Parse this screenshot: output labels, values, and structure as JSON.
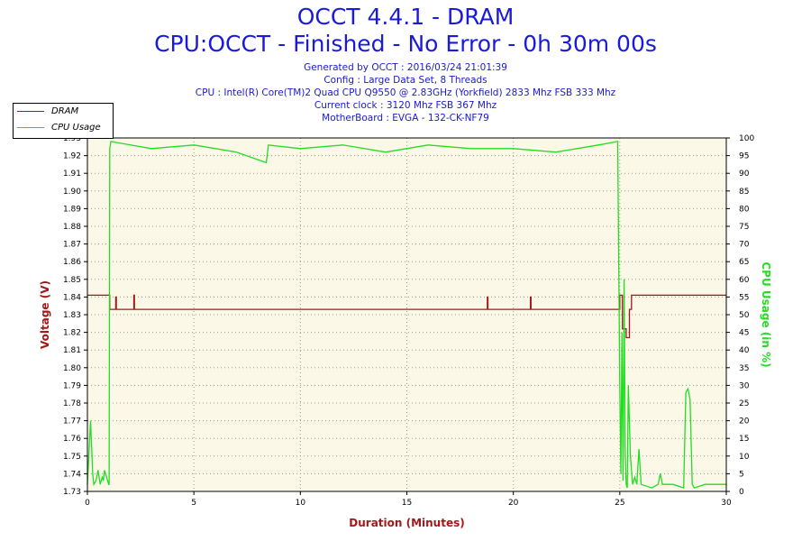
{
  "title": "OCCT 4.4.1 - DRAM",
  "subtitle": "CPU:OCCT - Finished - No Error - 0h 30m 00s",
  "info_lines": [
    "Generated by OCCT : 2016/03/24 21:01:39",
    "Config : Large Data Set, 8 Threads",
    "CPU : Intel(R) Core(TM)2 Quad CPU Q9550 @ 2.83GHz (Yorkfield) 2833 Mhz FSB 333 Mhz",
    "Current clock : 3120 Mhz FSB 367 Mhz",
    "MotherBoard : EVGA - 132-CK-NF79"
  ],
  "colors": {
    "dram": "#a31818",
    "cpu": "#22dd22",
    "title": "#1a1adc",
    "plot_bg": "#fbf8e8",
    "grid": "#999999"
  },
  "chart_data": {
    "type": "line",
    "xlabel": "Duration (Minutes)",
    "ylabel_left": "Voltage (V)",
    "ylabel_right": "CPU Usage (in %)",
    "xlim": [
      0,
      30
    ],
    "ylim_left": [
      1.73,
      1.93
    ],
    "ylim_right": [
      0,
      100
    ],
    "x_ticks": [
      0,
      5,
      10,
      15,
      20,
      25,
      30
    ],
    "y_left_ticks": [
      1.73,
      1.74,
      1.75,
      1.76,
      1.77,
      1.78,
      1.79,
      1.8,
      1.81,
      1.82,
      1.83,
      1.84,
      1.85,
      1.86,
      1.87,
      1.88,
      1.89,
      1.9,
      1.91,
      1.92,
      1.93
    ],
    "y_left_tick_labels": [
      "1.73",
      "1.74",
      "1.75",
      "1.76",
      "1.77",
      "1.78",
      "1.79",
      "1.80",
      "1.81",
      "1.82",
      "1.83",
      "1.84",
      "1.85",
      "1.86",
      "1.87",
      "1.88",
      "1.89",
      "1.90",
      "1.91",
      "1.92",
      "1.93"
    ],
    "y_right_ticks": [
      0,
      5,
      10,
      15,
      20,
      25,
      30,
      35,
      40,
      45,
      50,
      55,
      60,
      65,
      70,
      75,
      80,
      85,
      90,
      95,
      100
    ],
    "grid": true,
    "legend_position": "top-left",
    "series": [
      {
        "name": "DRAM",
        "axis": "left",
        "x": [
          0,
          1.05,
          1.05,
          1.33,
          1.33,
          1.36,
          1.36,
          2.18,
          2.18,
          2.21,
          2.21,
          18.78,
          18.78,
          18.81,
          18.81,
          20.8,
          20.8,
          20.83,
          20.83,
          25.0,
          25.0,
          25.12,
          25.12,
          25.3,
          25.3,
          25.45,
          25.45,
          25.55,
          25.55,
          30
        ],
        "y": [
          1.841,
          1.841,
          1.833,
          1.833,
          1.84,
          1.84,
          1.833,
          1.833,
          1.841,
          1.841,
          1.833,
          1.833,
          1.84,
          1.84,
          1.833,
          1.833,
          1.84,
          1.84,
          1.833,
          1.833,
          1.841,
          1.841,
          1.822,
          1.822,
          1.817,
          1.817,
          1.833,
          1.833,
          1.841,
          1.841
        ]
      },
      {
        "name": "CPU Usage",
        "axis": "right",
        "x": [
          0,
          0.15,
          0.25,
          0.3,
          0.4,
          0.5,
          0.6,
          0.7,
          0.75,
          0.8,
          0.9,
          1.0,
          1.02,
          1.05,
          1.1,
          3,
          5,
          7,
          8.4,
          8.5,
          10,
          12,
          14,
          16,
          18,
          20,
          22,
          24,
          24.9,
          25.0,
          25.05,
          25.1,
          25.15,
          25.2,
          25.25,
          25.3,
          25.35,
          25.4,
          25.5,
          25.6,
          25.7,
          25.8,
          25.9,
          26.0,
          26.5,
          26.8,
          26.9,
          27.0,
          27.5,
          28.0,
          28.1,
          28.2,
          28.3,
          28.4,
          28.5,
          29,
          29.5,
          30
        ],
        "y": [
          2,
          20,
          5,
          2,
          3,
          6,
          2,
          4,
          3,
          6,
          4,
          2,
          2,
          97,
          99,
          97,
          98,
          96,
          93,
          98,
          97,
          98,
          96,
          98,
          97,
          97,
          96,
          98,
          99,
          30,
          5,
          45,
          3,
          60,
          12,
          2,
          1,
          30,
          10,
          2,
          4,
          2,
          12,
          2,
          1,
          2,
          5,
          2,
          2,
          1,
          28,
          29,
          26,
          2,
          1,
          2,
          2,
          2
        ]
      }
    ]
  }
}
